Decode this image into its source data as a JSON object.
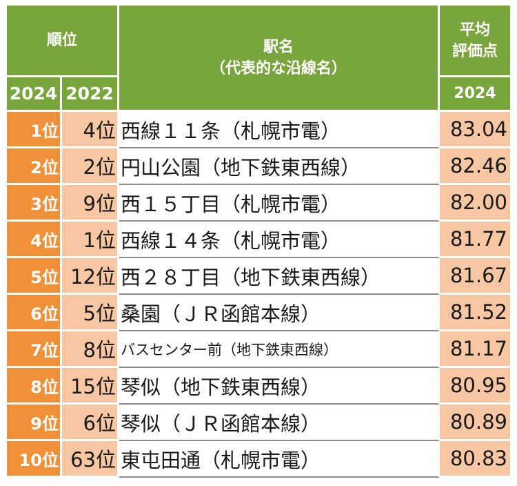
{
  "header": {
    "rank_label": "順位",
    "station_label_line1": "駅名",
    "station_label_line2": "（代表的な沿線名）",
    "score_label_line1": "平均",
    "score_label_line2": "評価点",
    "year_current": "2024",
    "year_previous": "2022",
    "score_year": "2024"
  },
  "rows": [
    {
      "rank_2024": "1位",
      "rank_2022": "4位",
      "station": "西線１１条（札幌市電）",
      "score": "83.04"
    },
    {
      "rank_2024": "2位",
      "rank_2022": "2位",
      "station": "円山公園（地下鉄東西線）",
      "score": "82.46"
    },
    {
      "rank_2024": "3位",
      "rank_2022": "9位",
      "station": "西１５丁目（札幌市電）",
      "score": "82.00"
    },
    {
      "rank_2024": "4位",
      "rank_2022": "1位",
      "station": "西線１４条（札幌市電）",
      "score": "81.77"
    },
    {
      "rank_2024": "5位",
      "rank_2022": "12位",
      "station": "西２８丁目（地下鉄東西線）",
      "score": "81.67"
    },
    {
      "rank_2024": "6位",
      "rank_2022": "5位",
      "station": "桑園（ＪＲ函館本線）",
      "score": "81.52"
    },
    {
      "rank_2024": "7位",
      "rank_2022": "8位",
      "station": "バスセンター前（地下鉄東西線）",
      "score": "81.17"
    },
    {
      "rank_2024": "8位",
      "rank_2022": "15位",
      "station": "琴似（地下鉄東西線）",
      "score": "80.95"
    },
    {
      "rank_2024": "9位",
      "rank_2022": "6位",
      "station": "琴似（ＪＲ函館本線）",
      "score": "80.89"
    },
    {
      "rank_2024": "10位",
      "rank_2022": "63位",
      "station": "東屯田通（札幌市電）",
      "score": "80.83"
    }
  ],
  "colors": {
    "header_green": "#79a63c",
    "rank_orange": "#f0913a",
    "light_peach": "#f6c7a2"
  }
}
